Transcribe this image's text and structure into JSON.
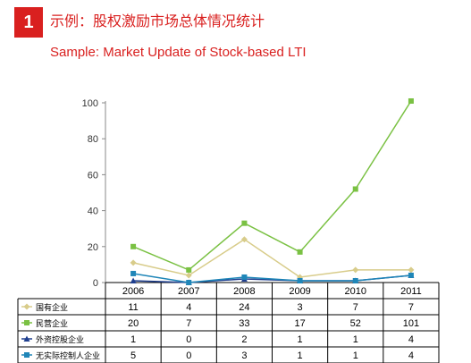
{
  "header": {
    "badge": "1",
    "title_cn": "示例：股权激励市场总体情况统计",
    "title_en": "Sample: Market Update of Stock-based LTI"
  },
  "colors": {
    "accent": "#d9201f"
  },
  "chart_data": {
    "type": "line",
    "categories": [
      "2006",
      "2007",
      "2008",
      "2009",
      "2010",
      "2011"
    ],
    "ylim": [
      0,
      100
    ],
    "yticks": [
      0,
      20,
      40,
      60,
      80,
      100
    ],
    "grid": false,
    "legend": "table-below",
    "series": [
      {
        "name": "国有企业",
        "values": [
          11,
          4,
          24,
          3,
          7,
          7
        ],
        "color": "#d8cc8a",
        "marker": "diamond"
      },
      {
        "name": "民营企业",
        "values": [
          20,
          7,
          33,
          17,
          52,
          101
        ],
        "color": "#7ac143",
        "marker": "square"
      },
      {
        "name": "外资控股企业",
        "values": [
          1,
          0,
          2,
          1,
          1,
          4
        ],
        "color": "#1f3f8f",
        "marker": "triangle"
      },
      {
        "name": "无实际控制人企业",
        "values": [
          5,
          0,
          3,
          1,
          1,
          4
        ],
        "color": "#1f86b8",
        "marker": "square"
      }
    ]
  }
}
